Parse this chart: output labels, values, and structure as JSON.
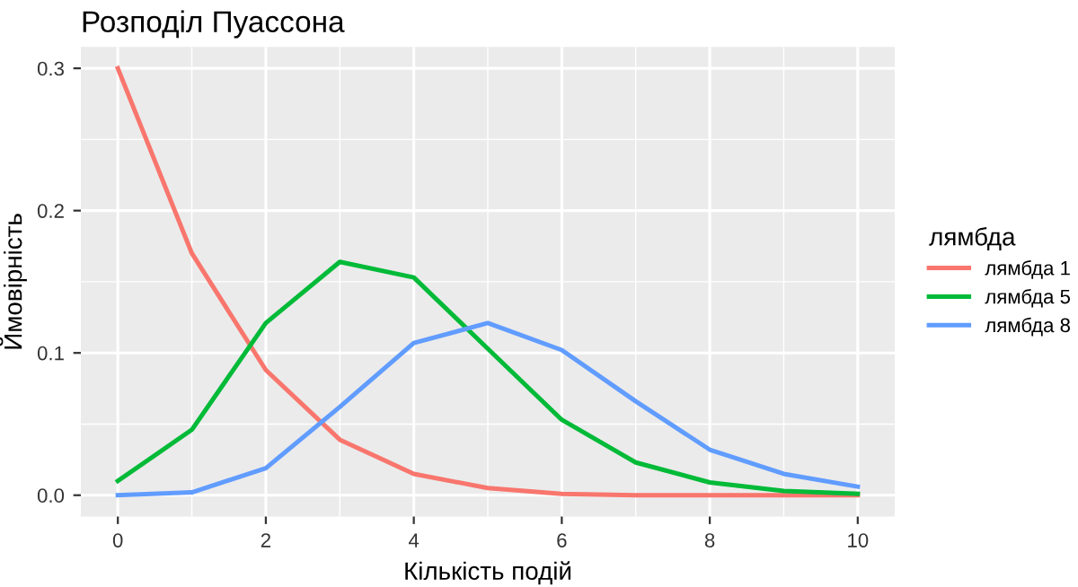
{
  "chart_data": {
    "type": "line",
    "title": "Розподіл Пуассона",
    "xlabel": "Кількість подій",
    "ylabel": "Ймовірність",
    "legend_title": "лямбда",
    "legend": "right",
    "grid": true,
    "x": [
      0,
      1,
      2,
      3,
      4,
      5,
      6,
      7,
      8,
      9,
      10
    ],
    "xlim": [
      -0.5,
      10.5
    ],
    "xticks": [
      0,
      2,
      4,
      6,
      8,
      10
    ],
    "ylim": [
      -0.015,
      0.315
    ],
    "yticks": [
      {
        "value": 0,
        "label": "0.0"
      },
      0.1,
      0.2,
      0.3
    ],
    "series": [
      {
        "name": "лямбда 1",
        "color": "#f8766d",
        "values": [
          0.3,
          0.17,
          0.088,
          0.039,
          0.015,
          0.005,
          0.001,
          0,
          0,
          0,
          0
        ]
      },
      {
        "name": "лямбда 5",
        "color": "#00ba38",
        "values": [
          0.01,
          0.046,
          0.121,
          0.164,
          0.153,
          0.103,
          0.053,
          0.023,
          0.009,
          0.003,
          0.001
        ]
      },
      {
        "name": "лямбда 8",
        "color": "#619cff",
        "values": [
          0,
          0.002,
          0.019,
          0.062,
          0.107,
          0.121,
          0.102,
          0.066,
          0.032,
          0.015,
          0.006
        ]
      }
    ]
  }
}
